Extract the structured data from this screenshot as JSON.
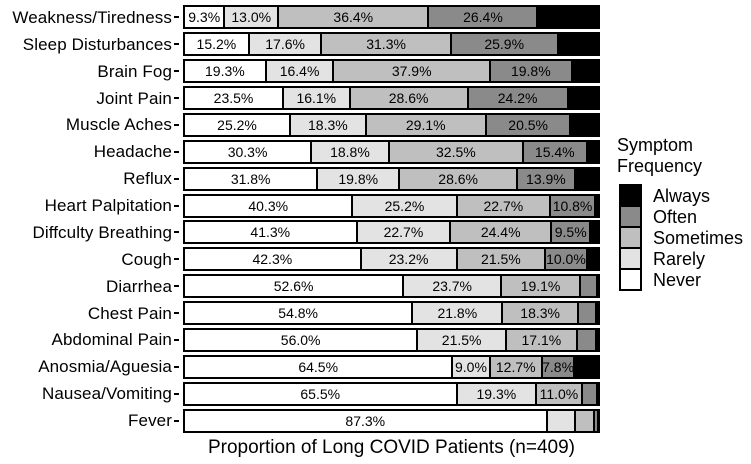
{
  "chart_data": {
    "type": "bar",
    "subtype": "horizontal-stacked-percent",
    "title": "",
    "xlabel": "Proportion of Long COVID Patients (n=409)",
    "ylabel": "",
    "xlim": [
      0,
      100
    ],
    "grid": false,
    "bar_outline_color": "#000000",
    "stack_order": [
      "Never",
      "Rarely",
      "Sometimes",
      "Often",
      "Always"
    ],
    "colors": {
      "Never": "#ffffff",
      "Rarely": "#e3e3e3",
      "Sometimes": "#bfbfbf",
      "Often": "#8a8a8a",
      "Always": "#000000"
    },
    "legend": {
      "position": "right",
      "title_line1": "Symptom",
      "title_line2": "Frequency",
      "entries": [
        {
          "label": "Always",
          "color": "#000000"
        },
        {
          "label": "Often",
          "color": "#8a8a8a"
        },
        {
          "label": "Sometimes",
          "color": "#bfbfbf"
        },
        {
          "label": "Rarely",
          "color": "#e3e3e3"
        },
        {
          "label": "Never",
          "color": "#ffffff"
        }
      ]
    },
    "rows": [
      {
        "category": "Weakness/Tiredness",
        "values": [
          9.3,
          13.0,
          36.4,
          26.4,
          14.9
        ],
        "labels": [
          "9.3%",
          "13.0%",
          "36.4%",
          "26.4%",
          ""
        ]
      },
      {
        "category": "Sleep Disturbances",
        "values": [
          15.2,
          17.6,
          31.3,
          25.9,
          10.0
        ],
        "labels": [
          "15.2%",
          "17.6%",
          "31.3%",
          "25.9%",
          ""
        ]
      },
      {
        "category": "Brain Fog",
        "values": [
          19.3,
          16.4,
          37.9,
          19.8,
          6.6
        ],
        "labels": [
          "19.3%",
          "16.4%",
          "37.9%",
          "19.8%",
          ""
        ]
      },
      {
        "category": "Joint Pain",
        "values": [
          23.5,
          16.1,
          28.6,
          24.2,
          7.6
        ],
        "labels": [
          "23.5%",
          "16.1%",
          "28.6%",
          "24.2%",
          ""
        ]
      },
      {
        "category": "Muscle Aches",
        "values": [
          25.2,
          18.3,
          29.1,
          20.5,
          6.9
        ],
        "labels": [
          "25.2%",
          "18.3%",
          "29.1%",
          "20.5%",
          ""
        ]
      },
      {
        "category": "Headache",
        "values": [
          30.3,
          18.8,
          32.5,
          15.4,
          3.0
        ],
        "labels": [
          "30.3%",
          "18.8%",
          "32.5%",
          "15.4%",
          ""
        ]
      },
      {
        "category": "Reflux",
        "values": [
          31.8,
          19.8,
          28.6,
          13.9,
          5.9
        ],
        "labels": [
          "31.8%",
          "19.8%",
          "28.6%",
          "13.9%",
          ""
        ]
      },
      {
        "category": "Heart Palpitation",
        "values": [
          40.3,
          25.2,
          22.7,
          10.8,
          1.0
        ],
        "labels": [
          "40.3%",
          "25.2%",
          "22.7%",
          "10.8%",
          ""
        ]
      },
      {
        "category": "Diffculty Breathing",
        "values": [
          41.3,
          22.7,
          24.4,
          9.5,
          2.1
        ],
        "labels": [
          "41.3%",
          "22.7%",
          "24.4%",
          "9.5%",
          ""
        ]
      },
      {
        "category": "Cough",
        "values": [
          42.3,
          23.2,
          21.5,
          10.0,
          3.0
        ],
        "labels": [
          "42.3%",
          "23.2%",
          "21.5%",
          "10.0%",
          ""
        ]
      },
      {
        "category": "Diarrhea",
        "values": [
          52.6,
          23.7,
          19.1,
          4.0,
          0.6
        ],
        "labels": [
          "52.6%",
          "23.7%",
          "19.1%",
          "",
          ""
        ]
      },
      {
        "category": "Chest Pain",
        "values": [
          54.8,
          21.8,
          18.3,
          4.4,
          0.7
        ],
        "labels": [
          "54.8%",
          "21.8%",
          "18.3%",
          "",
          ""
        ]
      },
      {
        "category": "Abdominal Pain",
        "values": [
          56.0,
          21.5,
          17.1,
          4.6,
          0.8
        ],
        "labels": [
          "56.0%",
          "21.5%",
          "17.1%",
          "",
          ""
        ]
      },
      {
        "category": "Anosmia/Aguesia",
        "values": [
          64.5,
          9.0,
          12.7,
          7.8,
          6.0
        ],
        "labels": [
          "64.5%",
          "9.0%",
          "12.7%",
          "7.8%",
          ""
        ]
      },
      {
        "category": "Nausea/Vomiting",
        "values": [
          65.5,
          19.3,
          11.0,
          3.7,
          0.5
        ],
        "labels": [
          "65.5%",
          "19.3%",
          "11.0%",
          "",
          ""
        ]
      },
      {
        "category": "Fever",
        "values": [
          87.3,
          6.8,
          4.8,
          0.8,
          0.3
        ],
        "labels": [
          "87.3%",
          "",
          "",
          "",
          ""
        ]
      }
    ]
  }
}
